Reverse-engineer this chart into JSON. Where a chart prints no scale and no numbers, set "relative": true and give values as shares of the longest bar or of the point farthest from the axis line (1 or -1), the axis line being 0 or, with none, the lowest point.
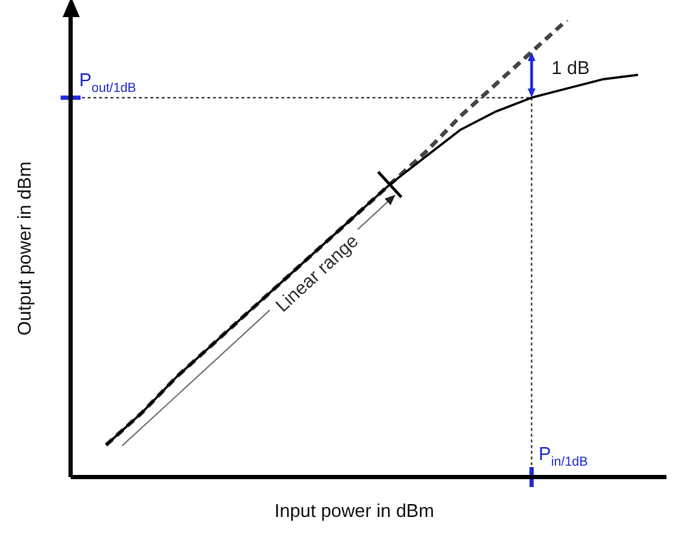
{
  "chart_data": {
    "type": "line",
    "relative": true,
    "xlabel": "Input power in dBm",
    "ylabel": "Output power in dBm",
    "legend": false,
    "grid": false,
    "marker": "none",
    "categories": [
      null,
      null,
      null,
      null,
      null,
      null,
      null,
      null,
      null,
      null,
      null,
      null,
      null,
      null,
      null,
      null,
      null
    ],
    "series": [
      {
        "color": "#000000",
        "line_style": "solid",
        "values": [
          null,
          0.07,
          0.14,
          0.22,
          0.29,
          0.36,
          0.43,
          0.5,
          0.57,
          0.64,
          0.7,
          0.76,
          0.8,
          0.83,
          0.85,
          0.87,
          0.88
        ]
      },
      {
        "color": "#444444",
        "line_style": "dashed",
        "values": [
          null,
          0.07,
          0.14,
          0.22,
          0.29,
          0.36,
          0.43,
          0.5,
          0.57,
          0.64,
          0.71,
          0.79,
          0.86,
          0.93,
          1,
          null,
          null
        ]
      }
    ],
    "ref_lines": [
      {
        "axis": "y",
        "value": 0.83,
        "label": "P$_{out/1dB}$",
        "color": "#333333",
        "line_style": "dotted"
      }
    ],
    "annotations": [
      "P$_{in/1dB}$",
      "1 dB",
      "Linear range"
    ]
  }
}
